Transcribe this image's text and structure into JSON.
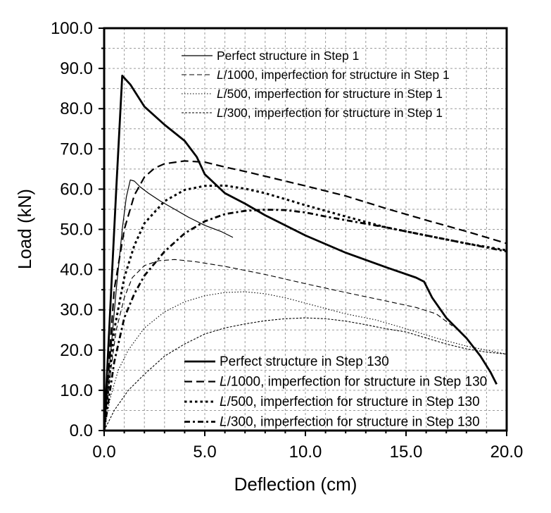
{
  "chart_data": {
    "type": "line",
    "title": "",
    "xlabel": "Deflection (cm)",
    "ylabel": "Load (kN)",
    "xlim": [
      0.0,
      20.0
    ],
    "ylim": [
      0.0,
      100.0
    ],
    "x_ticks": [
      "0.0",
      "5.0",
      "10.0",
      "15.0",
      "20.0"
    ],
    "y_ticks": [
      "0.0",
      "10.0",
      "20.0",
      "30.0",
      "40.0",
      "50.0",
      "60.0",
      "70.0",
      "80.0",
      "90.0",
      "100.0"
    ],
    "grid": true,
    "legends": [
      {
        "placement": "top",
        "entries": [
          {
            "prefix": "",
            "text": "Perfect structure in Step 1",
            "series": "step1-perfect"
          },
          {
            "prefix": "L",
            "text": "/1000, imperfection for structure in Step 1",
            "series": "step1-L1000"
          },
          {
            "prefix": "L",
            "text": "/500, imperfection for structure in Step 1",
            "series": "step1-L500"
          },
          {
            "prefix": "L",
            "text": "/300, imperfection for structure in Step 1",
            "series": "step1-L300"
          }
        ]
      },
      {
        "placement": "bottom",
        "entries": [
          {
            "prefix": "",
            "text": "Perfect structure in Step 130",
            "series": "step130-perfect"
          },
          {
            "prefix": "L",
            "text": "/1000, imperfection for structure in Step 130",
            "series": "step130-L1000"
          },
          {
            "prefix": "L",
            "text": "/500, imperfection for structure in Step 130",
            "series": "step130-L500"
          },
          {
            "prefix": "L",
            "text": "/300, imperfection for structure in Step 130",
            "series": "step130-L300"
          }
        ]
      }
    ],
    "series": [
      {
        "id": "step1-perfect",
        "name": "Perfect structure in Step 1",
        "style": "solid-thin",
        "x": [
          0,
          0.3,
          0.6,
          0.9,
          1.1,
          1.3,
          1.5,
          1.8,
          2.2,
          2.8,
          3.5,
          4.2,
          5.0,
          5.8,
          6.4
        ],
        "y": [
          0,
          18,
          35,
          50,
          58,
          62.3,
          62.0,
          60.5,
          59,
          57,
          55,
          53,
          51,
          49.5,
          48
        ]
      },
      {
        "id": "step1-L1000",
        "name": "L/1000, imperfection for structure in Step 1",
        "style": "dash-thin",
        "x": [
          0,
          0.3,
          0.6,
          1.0,
          1.4,
          2.0,
          2.7,
          3.5,
          4.5,
          6,
          8,
          10,
          12,
          14,
          15.5,
          16.5,
          17.3
        ],
        "y": [
          0,
          14,
          25,
          33,
          38,
          41,
          42.2,
          42.5,
          42,
          40.8,
          38.8,
          36.5,
          34.3,
          32.2,
          30.6,
          29,
          26
        ]
      },
      {
        "id": "step1-L500",
        "name": "L/500, imperfection for structure in Step 1",
        "style": "dot-thin",
        "x": [
          0,
          0.3,
          0.7,
          1.2,
          2.0,
          3.0,
          4.0,
          5.0,
          6.0,
          7.0,
          8.0,
          9.0,
          10.5,
          12,
          13.5,
          15,
          16.5,
          18,
          20
        ],
        "y": [
          0,
          8,
          15,
          20,
          25.5,
          29.5,
          32,
          33.5,
          34.3,
          34.5,
          34,
          33,
          31,
          29,
          27.5,
          25.3,
          23,
          21,
          19
        ]
      },
      {
        "id": "step1-L300",
        "name": "L/300, imperfection for structure in Step 1",
        "style": "shortdash-thin",
        "x": [
          0,
          0.5,
          1.2,
          2.0,
          3.0,
          4.0,
          5.0,
          6.0,
          7.0,
          8.0,
          9.0,
          10.0,
          11.0,
          12.0,
          13.0,
          14.0,
          15.0,
          16.0,
          17.0,
          18.0,
          19.0,
          20.0
        ],
        "y": [
          0,
          5,
          10,
          14,
          18.5,
          21.5,
          24,
          25.5,
          26.5,
          27.3,
          27.8,
          28.0,
          27.8,
          27.2,
          26.3,
          25.3,
          24.5,
          23,
          21.5,
          20.3,
          19.5,
          19
        ]
      },
      {
        "id": "step130-perfect",
        "name": "Perfect structure in Step 130",
        "style": "solid-thick",
        "x": [
          0,
          0.3,
          0.6,
          0.9,
          1.3,
          2.0,
          3.0,
          4.0,
          4.6,
          5.0,
          6.0,
          7.0,
          8.0,
          10.0,
          12.0,
          14.0,
          15.5,
          15.9,
          16.3,
          17.0,
          18.0,
          18.7,
          19.2,
          19.5
        ],
        "y": [
          0,
          30,
          60,
          88.2,
          86,
          80.5,
          76,
          72,
          68,
          63.7,
          59,
          56.4,
          53.5,
          48.5,
          44.2,
          40.6,
          38,
          37,
          33,
          28,
          23,
          18.5,
          14.5,
          11.5
        ]
      },
      {
        "id": "step130-L1000",
        "name": "L/1000, imperfection for structure in Step 130",
        "style": "dash-thick",
        "x": [
          0,
          0.5,
          1.0,
          1.5,
          2.0,
          2.5,
          3.0,
          4.0,
          5.0,
          6.0,
          7.0,
          8.0,
          10.0,
          12.0,
          14.0,
          16.0,
          18.0,
          20.0
        ],
        "y": [
          0,
          35,
          50,
          58.5,
          63,
          65.2,
          66.3,
          67,
          66.7,
          65.5,
          64.4,
          63.2,
          60.8,
          58.3,
          55.2,
          52.3,
          49.5,
          46.5
        ]
      },
      {
        "id": "step130-L500",
        "name": "L/500, imperfection for structure in Step 130",
        "style": "dot-thick",
        "x": [
          0,
          0.5,
          1.0,
          1.5,
          2.0,
          3.0,
          4.0,
          5.0,
          6.0,
          7.0,
          8.0,
          10.0,
          12.0,
          14.0,
          16.0,
          18.0,
          20.0
        ],
        "y": [
          0,
          25,
          38,
          46,
          51.5,
          57,
          59.8,
          60.8,
          60.9,
          60.1,
          59,
          56,
          53.2,
          50.5,
          48.5,
          46.5,
          44.8
        ]
      },
      {
        "id": "step130-L300",
        "name": "L/300, imperfection for structure in Step 130",
        "style": "dashdot-thick",
        "x": [
          0,
          0.5,
          1.0,
          1.5,
          2.0,
          3.0,
          4.0,
          5.0,
          6.0,
          7.0,
          8.0,
          9.0,
          10.0,
          11.0,
          12.0,
          14.0,
          16.0,
          18.0,
          20.0
        ],
        "y": [
          0,
          17,
          28,
          34,
          38.5,
          44.5,
          49,
          52,
          53.8,
          54.6,
          54.9,
          54.8,
          54.2,
          53.2,
          52.3,
          50.5,
          48.5,
          46.5,
          44.5
        ]
      }
    ]
  }
}
